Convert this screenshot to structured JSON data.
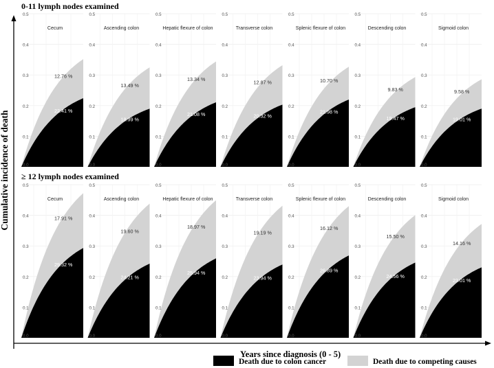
{
  "chart_data": {
    "type": "area",
    "ylabel": "Cumulative incidence of death",
    "xlabel": "Years since diagnosis (0 - 5)",
    "xlim": [
      0,
      5
    ],
    "ylim": [
      0,
      0.5
    ],
    "yticks": [
      "0.0",
      "0.1",
      "0.2",
      "0.3",
      "0.4",
      "0.5"
    ],
    "legend": {
      "position": "bottom-right",
      "colon_cancer": {
        "label": "Death due to colon cancer",
        "color": "#000000"
      },
      "competing": {
        "label": "Death due to competing causes",
        "color": "#d3d3d3"
      }
    },
    "groups": [
      {
        "title": "0-11 lymph nodes examined",
        "panels": [
          {
            "name": "Cecum",
            "colon_cancer": 0.2241,
            "competing": 0.1276,
            "colon_label": "22.41 %",
            "competing_label": "12.76 %"
          },
          {
            "name": "Ascending colon",
            "colon_cancer": 0.1899,
            "competing": 0.1349,
            "colon_label": "18.99 %",
            "competing_label": "13.49 %"
          },
          {
            "name": "Hepatic flexure of colon",
            "colon_cancer": 0.2108,
            "competing": 0.1334,
            "colon_label": "21.08 %",
            "competing_label": "13.34 %"
          },
          {
            "name": "Transverse colon",
            "colon_cancer": 0.2032,
            "competing": 0.1287,
            "colon_label": "20.32 %",
            "competing_label": "12.87 %"
          },
          {
            "name": "Splenic flexure of colon",
            "colon_cancer": 0.2198,
            "competing": 0.107,
            "colon_label": "21.98 %",
            "competing_label": "10.70 %"
          },
          {
            "name": "Descending colon",
            "colon_cancer": 0.1947,
            "competing": 0.0983,
            "colon_label": "19.47 %",
            "competing_label": "9.83 %"
          },
          {
            "name": "Sigmoid colon",
            "colon_cancer": 0.1901,
            "competing": 0.0958,
            "colon_label": "19.01 %",
            "competing_label": "9.58 %"
          }
        ]
      },
      {
        "title": "≥ 12 lymph nodes examined",
        "panels": [
          {
            "name": "Cecum",
            "colon_cancer": 0.2932,
            "competing": 0.1791,
            "colon_label": "29.32 %",
            "competing_label": "17.91 %"
          },
          {
            "name": "Ascending colon",
            "colon_cancer": 0.2421,
            "competing": 0.196,
            "colon_label": "24.21 %",
            "competing_label": "19.60 %"
          },
          {
            "name": "Hepatic flexure of colon",
            "colon_cancer": 0.2594,
            "competing": 0.1897,
            "colon_label": "25.94 %",
            "competing_label": "18.97 %"
          },
          {
            "name": "Transverse colon",
            "colon_cancer": 0.2394,
            "competing": 0.1919,
            "colon_label": "23.94 %",
            "competing_label": "19.19 %"
          },
          {
            "name": "Splenic flexure of colon",
            "colon_cancer": 0.2689,
            "competing": 0.1612,
            "colon_label": "26.89 %",
            "competing_label": "16.12 %"
          },
          {
            "name": "Descending colon",
            "colon_cancer": 0.2456,
            "competing": 0.155,
            "colon_label": "24.56 %",
            "competing_label": "15.50 %"
          },
          {
            "name": "Sigmoid colon",
            "colon_cancer": 0.2301,
            "competing": 0.1416,
            "colon_label": "23.01 %",
            "competing_label": "14.16 %"
          }
        ]
      }
    ]
  }
}
